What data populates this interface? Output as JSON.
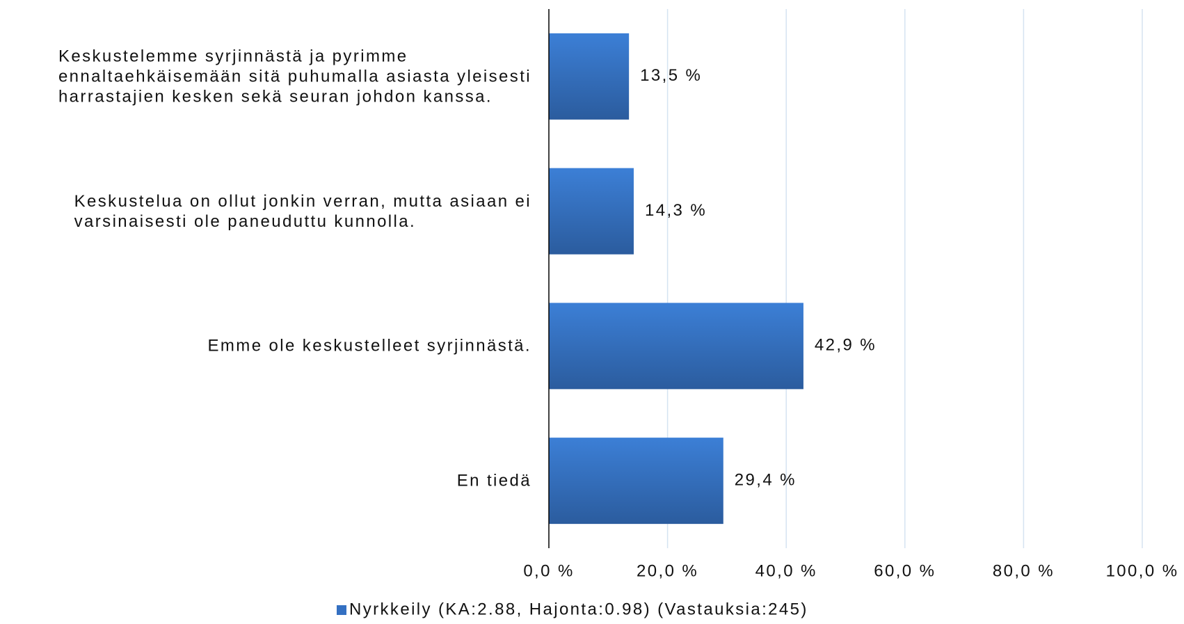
{
  "chart_data": {
    "type": "barh",
    "categories": [
      "Keskustelemme syrjinnästä ja pyrimme\nennaltaehkäisemään sitä puhumalla asiasta yleisesti\nharrastajien kesken sekä seuran johdon kanssa.",
      "Keskustelua on ollut jonkin verran, mutta asiaan ei\nvarsinaisesti ole paneuduttu kunnolla.",
      "Emme ole keskustelleet syrjinnästä.",
      "En tiedä"
    ],
    "series": [
      {
        "name": "Nyrkkeily (KA:2.88, Hajonta:0.98) (Vastauksia:245)",
        "color": "#3470c2",
        "values": [
          13.5,
          14.3,
          42.9,
          29.4
        ],
        "value_labels": [
          "13,5 %",
          "14,3 %",
          "42,9 %",
          "29,4 %"
        ]
      }
    ],
    "xlim": [
      0,
      100
    ],
    "xticks": [
      {
        "value": 0,
        "label": "0,0 %"
      },
      {
        "value": 20,
        "label": "20,0 %"
      },
      {
        "value": 40,
        "label": "40,0 %"
      },
      {
        "value": 60,
        "label": "60,0 %"
      },
      {
        "value": 80,
        "label": "80,0 %"
      },
      {
        "value": 100,
        "label": "100,0 %"
      }
    ],
    "grid": true,
    "legend": "bottom"
  }
}
